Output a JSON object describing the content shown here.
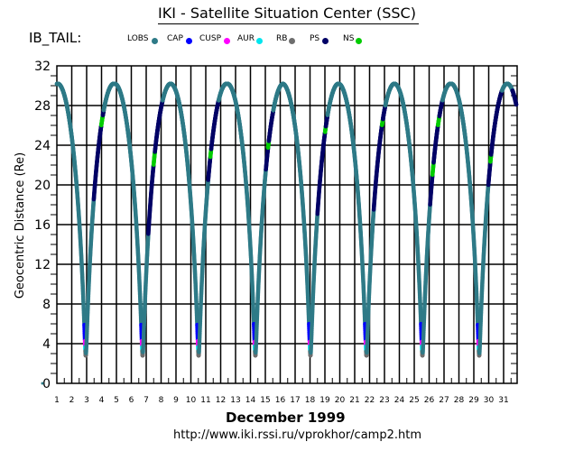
{
  "header": {
    "title": "IKI - Satellite Situation Center (SSC)",
    "satellite": "IB_TAIL:"
  },
  "legend": [
    {
      "label": "LOBS",
      "color": "#2e7a87"
    },
    {
      "label": "CAP",
      "color": "#0000ff"
    },
    {
      "label": "CUSP",
      "color": "#ff00ff"
    },
    {
      "label": "AUR",
      "color": "#00e5ee"
    },
    {
      "label": "RB",
      "color": "#6e6e6e"
    },
    {
      "label": "PS",
      "color": "#000066"
    },
    {
      "label": "NS",
      "color": "#00cc00"
    }
  ],
  "footer": {
    "month_year": "December    1999",
    "url": "http://www.iki.rssi.ru/vprokhor/camp2.htm"
  },
  "chart_data": {
    "type": "line",
    "title": "IKI - Satellite Situation Center (SSC)",
    "xlabel": "December    1999",
    "ylabel": "Geocentric  Distance  (Re)",
    "xlim": [
      1,
      31.85
    ],
    "ylim": [
      0,
      32
    ],
    "x_ticks": [
      "1",
      "2",
      "3",
      "4",
      "5",
      "6",
      "7",
      "8",
      "9",
      "10",
      "11",
      "12",
      "13",
      "14",
      "15",
      "16",
      "17",
      "18",
      "19",
      "20",
      "21",
      "22",
      "23",
      "24",
      "25",
      "26",
      "27",
      "28",
      "29",
      "30",
      "31"
    ],
    "y_ticks": [
      "0",
      "4",
      "8",
      "12",
      "16",
      "20",
      "24",
      "28",
      "32"
    ],
    "grid": true,
    "orbit": {
      "apogee_re": 30.2,
      "perigee_re": 2.8,
      "period_days": 3.77,
      "perigee_days": [
        2.94,
        6.76,
        10.52,
        14.33,
        18.03,
        21.79,
        25.55,
        29.36
      ]
    },
    "default_region": "LOBS",
    "perigee_regions": [
      {
        "region": "CAP",
        "below_re": 6.0
      },
      {
        "region": "CUSP",
        "below_re": 4.3
      },
      {
        "region": "AUR",
        "below_re": 3.8
      },
      {
        "region": "RB",
        "below_re": 3.3
      }
    ],
    "outbound_segments": [
      {
        "orbit": 1,
        "PS_re": [
          18.5,
          27.5
        ],
        "NS_re": [
          [
            26.0,
            27.0
          ]
        ]
      },
      {
        "orbit": 2,
        "PS_re": [
          15.0,
          28.5
        ],
        "NS_re": [
          [
            22.0,
            23.3
          ]
        ]
      },
      {
        "orbit": 3,
        "PS_re": [
          20.5,
          28.5
        ],
        "NS_re": [
          [
            22.8,
            23.6
          ]
        ]
      },
      {
        "orbit": 4,
        "PS_re": [
          21.5,
          27.5
        ],
        "NS_re": [
          [
            23.7,
            24.4
          ]
        ]
      },
      {
        "orbit": 5,
        "PS_re": [
          17.0,
          27.0
        ],
        "NS_re": [
          [
            25.3,
            25.9
          ]
        ]
      },
      {
        "orbit": 6,
        "PS_re": [
          17.5,
          28.0
        ],
        "NS_re": [
          [
            26.0,
            26.6
          ]
        ]
      },
      {
        "orbit": 7,
        "PS_re": [
          18.0,
          28.5
        ],
        "NS_re": [
          [
            21.0,
            22.2
          ],
          [
            26.0,
            26.9
          ]
        ]
      },
      {
        "orbit": 8,
        "PS_re": [
          20.0,
          29.5
        ],
        "NS_re": [
          [
            22.3,
            23.0
          ]
        ]
      }
    ]
  }
}
